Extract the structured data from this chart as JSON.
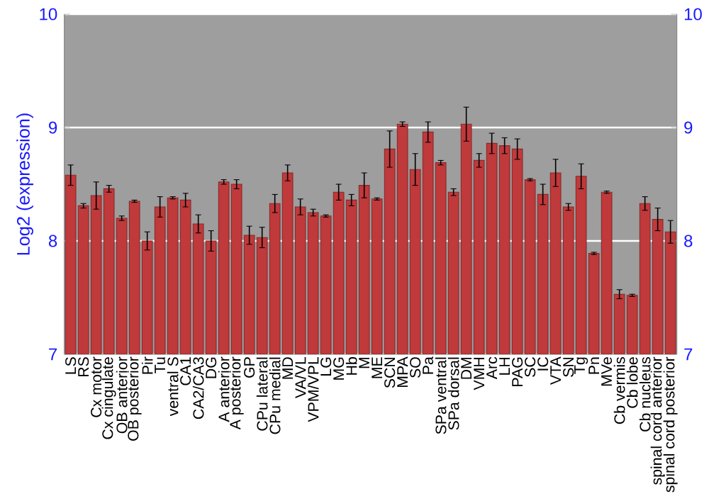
{
  "chart_data": {
    "type": "bar",
    "ylabel": "Log2 (expression)",
    "categories": [
      "LS",
      "RS",
      "Cx motor",
      "Cx cingulate",
      "OB anterior",
      "OB posterior",
      "Pir",
      "Tu",
      "ventral S",
      "CA1",
      "CA2/CA3",
      "DG",
      "A anterior",
      "A posterior",
      "GP",
      "CPu lateral",
      "CPu medial",
      "MD",
      "VA/VL",
      "VPM/VPL",
      "LG",
      "MG",
      "Hb",
      "M",
      "ME",
      "SCN",
      "MPA",
      "SO",
      "Pa",
      "SPa ventral",
      "SPa dorsal",
      "DM",
      "VMH",
      "Arc",
      "LH",
      "PAG",
      "SC",
      "IC",
      "VTA",
      "SN",
      "Tg",
      "Pn",
      "MVe",
      "Cb vermis",
      "Cb lobe",
      "Cb nucleus",
      "spinal cord anterior",
      "spinal cord posterior"
    ],
    "values": [
      8.58,
      8.31,
      8.4,
      8.46,
      8.2,
      8.35,
      8.0,
      8.3,
      8.38,
      8.36,
      8.15,
      8.0,
      8.52,
      8.5,
      8.05,
      8.03,
      8.33,
      8.6,
      8.3,
      8.25,
      8.22,
      8.43,
      8.36,
      8.49,
      8.37,
      8.81,
      9.03,
      8.63,
      8.96,
      8.69,
      8.43,
      9.03,
      8.71,
      8.86,
      8.84,
      8.81,
      8.54,
      8.41,
      8.6,
      8.3,
      8.57,
      7.89,
      8.43,
      7.53,
      7.52,
      8.33,
      8.19,
      8.08
    ],
    "errors": [
      0.09,
      0.02,
      0.12,
      0.03,
      0.02,
      0.01,
      0.08,
      0.09,
      0.01,
      0.06,
      0.08,
      0.09,
      0.02,
      0.04,
      0.08,
      0.09,
      0.08,
      0.07,
      0.07,
      0.03,
      0.01,
      0.07,
      0.05,
      0.11,
      0.01,
      0.16,
      0.02,
      0.14,
      0.09,
      0.02,
      0.03,
      0.15,
      0.06,
      0.09,
      0.07,
      0.09,
      0.01,
      0.09,
      0.12,
      0.03,
      0.11,
      0.01,
      0.01,
      0.04,
      0.01,
      0.06,
      0.1,
      0.1
    ],
    "color": "#c0393b",
    "ylim": [
      7,
      10
    ],
    "yticks": [
      7,
      8,
      9,
      10
    ],
    "y2lim": [
      7,
      10
    ],
    "y2ticks": [
      7,
      8,
      9,
      10
    ],
    "grid": "y"
  }
}
